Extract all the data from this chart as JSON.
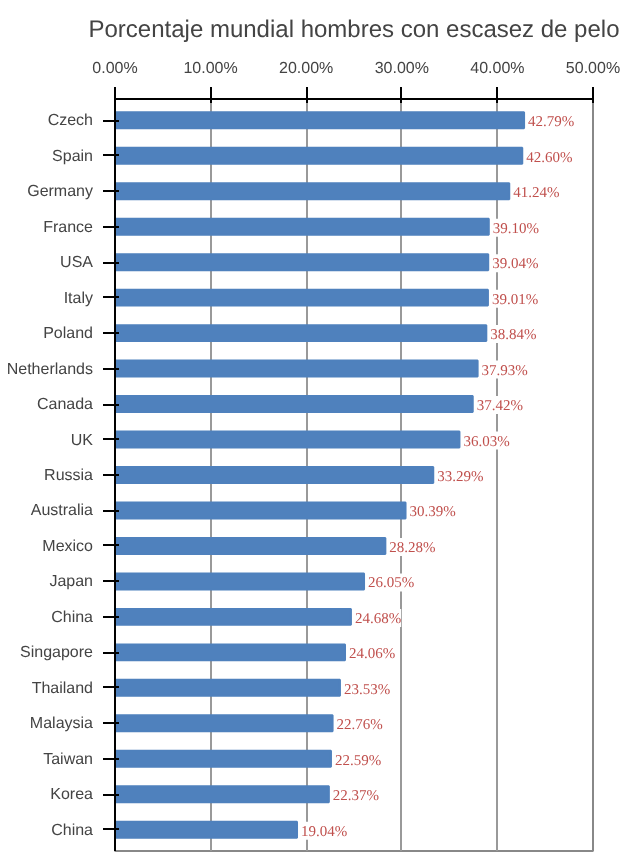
{
  "chart_data": {
    "type": "bar",
    "orientation": "horizontal",
    "title": "Porcentaje mundial hombres con escasez de pelo",
    "categories": [
      "Czech",
      "Spain",
      "Germany",
      "France",
      "USA",
      "Italy",
      "Poland",
      "Netherlands",
      "Canada",
      "UK",
      "Russia",
      "Australia",
      "Mexico",
      "Japan",
      "China",
      "Singapore",
      "Thailand",
      "Malaysia",
      "Taiwan",
      "Korea",
      "China"
    ],
    "values": [
      42.79,
      42.6,
      41.24,
      39.1,
      39.04,
      39.01,
      38.84,
      37.93,
      37.42,
      36.03,
      33.29,
      30.39,
      28.28,
      26.05,
      24.68,
      24.06,
      23.53,
      22.76,
      22.59,
      22.37,
      19.04
    ],
    "value_labels": [
      "42.79%",
      "42.60%",
      "41.24%",
      "39.10%",
      "39.04%",
      "39.01%",
      "38.84%",
      "37.93%",
      "37.42%",
      "36.03%",
      "33.29%",
      "30.39%",
      "28.28%",
      "26.05%",
      "24.68%",
      "24.06%",
      "23.53%",
      "22.76%",
      "22.59%",
      "22.37%",
      "19.04%"
    ],
    "color": "#4f81bd",
    "xlim": [
      0,
      50
    ],
    "xticks": [
      {
        "value": 0,
        "label": "0.00%"
      },
      {
        "value": 10,
        "label": "10.00%"
      },
      {
        "value": 20,
        "label": "20.00%"
      },
      {
        "value": 30,
        "label": "30.00%"
      },
      {
        "value": 40,
        "label": "40.00%"
      },
      {
        "value": 50,
        "label": "50.00%"
      }
    ],
    "grid": "x"
  }
}
